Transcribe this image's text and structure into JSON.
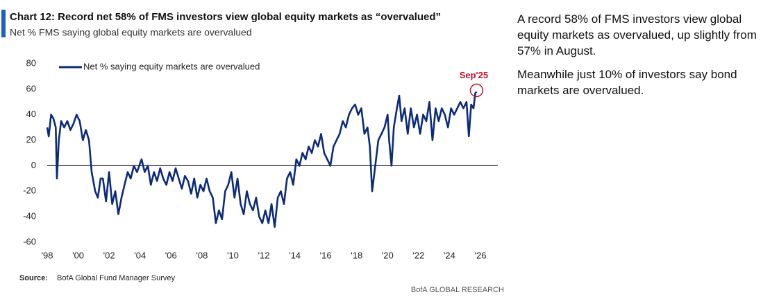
{
  "chart_data": {
    "type": "line",
    "title": "Chart 12: Record net 58% of FMS investors view global equity markets as “overvalued”",
    "subtitle": "Net % FMS saying global equity markets are overvalued",
    "annotation": "Sep'25",
    "source_label": "Source:",
    "source": "BofA Global Fund Manager Survey",
    "footer": "BofA GLOBAL RESEARCH",
    "xlim": [
      1998,
      2026
    ],
    "xticks": [
      {
        "value": 1998,
        "label": "'98"
      },
      {
        "value": 2000,
        "label": "'00"
      },
      {
        "value": 2002,
        "label": "'02"
      },
      {
        "value": 2004,
        "label": "'04"
      },
      {
        "value": 2006,
        "label": "'06"
      },
      {
        "value": 2008,
        "label": "'08"
      },
      {
        "value": 2010,
        "label": "'10"
      },
      {
        "value": 2012,
        "label": "'12"
      },
      {
        "value": 2014,
        "label": "'14"
      },
      {
        "value": 2016,
        "label": "'16"
      },
      {
        "value": 2018,
        "label": "'18"
      },
      {
        "value": 2020,
        "label": "'20"
      },
      {
        "value": 2022,
        "label": "'22"
      },
      {
        "value": 2024,
        "label": "'24"
      },
      {
        "value": 2026,
        "label": "'26"
      }
    ],
    "ylim": [
      -60,
      80
    ],
    "yticks": [
      -60,
      -40,
      -20,
      0,
      20,
      40,
      60,
      80
    ],
    "legend": "top-left",
    "x": [
      1998.0,
      1998.1,
      1998.25,
      1998.4,
      1998.55,
      1998.63,
      1998.75,
      1998.9,
      1999.1,
      1999.3,
      1999.5,
      1999.7,
      1999.9,
      2000.1,
      2000.3,
      2000.5,
      2000.7,
      2000.87,
      2001.1,
      2001.27,
      2001.45,
      2001.6,
      2001.8,
      2002.0,
      2002.2,
      2002.4,
      2002.6,
      2002.8,
      2003.0,
      2003.2,
      2003.4,
      2003.6,
      2003.8,
      2004.1,
      2004.3,
      2004.5,
      2004.7,
      2004.9,
      2005.1,
      2005.3,
      2005.5,
      2005.7,
      2005.9,
      2006.1,
      2006.3,
      2006.5,
      2006.7,
      2006.9,
      2007.1,
      2007.3,
      2007.5,
      2007.7,
      2007.9,
      2008.1,
      2008.3,
      2008.5,
      2008.7,
      2008.9,
      2009.1,
      2009.3,
      2009.5,
      2009.7,
      2009.9,
      2010.1,
      2010.3,
      2010.5,
      2010.7,
      2010.9,
      2011.1,
      2011.3,
      2011.5,
      2011.7,
      2011.9,
      2012.1,
      2012.3,
      2012.5,
      2012.7,
      2012.9,
      2013.1,
      2013.3,
      2013.5,
      2013.7,
      2013.9,
      2014.1,
      2014.3,
      2014.5,
      2014.7,
      2014.9,
      2015.1,
      2015.3,
      2015.5,
      2015.7,
      2015.9,
      2016.1,
      2016.3,
      2016.5,
      2016.7,
      2016.9,
      2017.1,
      2017.3,
      2017.5,
      2017.7,
      2017.9,
      2018.1,
      2018.3,
      2018.5,
      2018.7,
      2018.85,
      2019.0,
      2019.2,
      2019.4,
      2019.6,
      2019.8,
      2020.0,
      2020.1,
      2020.25,
      2020.4,
      2020.6,
      2020.75,
      2020.9,
      2021.1,
      2021.3,
      2021.5,
      2021.7,
      2021.9,
      2022.1,
      2022.3,
      2022.5,
      2022.7,
      2022.9,
      2023.1,
      2023.3,
      2023.5,
      2023.7,
      2023.9,
      2024.1,
      2024.3,
      2024.5,
      2024.7,
      2024.9,
      2025.1,
      2025.25,
      2025.4,
      2025.55,
      2025.67,
      2025.75
    ],
    "series": [
      {
        "name": "Net % saying equity markets are overvalued",
        "color": "#0b2a7a",
        "values": [
          30,
          23,
          40,
          37,
          30,
          -10,
          20,
          35,
          30,
          35,
          28,
          33,
          40,
          35,
          20,
          28,
          20,
          -5,
          -20,
          -25,
          -10,
          -10,
          -28,
          -5,
          -30,
          -20,
          -38,
          -25,
          -15,
          -5,
          -10,
          0,
          -5,
          5,
          -5,
          0,
          -15,
          -5,
          -12,
          -2,
          -10,
          -15,
          -5,
          -12,
          -2,
          -10,
          -18,
          -8,
          -12,
          -22,
          -10,
          -25,
          -15,
          -20,
          -10,
          -20,
          -25,
          -45,
          -35,
          -42,
          -20,
          -15,
          -5,
          -25,
          -10,
          -30,
          -38,
          -20,
          -30,
          -35,
          -25,
          -40,
          -45,
          -35,
          -45,
          -30,
          -48,
          -25,
          -20,
          -30,
          -10,
          -5,
          -15,
          5,
          0,
          10,
          5,
          15,
          10,
          20,
          15,
          25,
          10,
          5,
          0,
          15,
          20,
          25,
          35,
          30,
          40,
          45,
          48,
          40,
          45,
          25,
          30,
          15,
          -20,
          0,
          20,
          25,
          30,
          40,
          20,
          0,
          30,
          45,
          55,
          35,
          45,
          25,
          45,
          30,
          40,
          25,
          40,
          35,
          50,
          20,
          45,
          35,
          45,
          40,
          30,
          45,
          40,
          45,
          50,
          45,
          50,
          23,
          48,
          45,
          57,
          58
        ]
      }
    ]
  },
  "commentary": [
    "A record 58% of FMS investors view global equity markets as overvalued, up slightly from 57% in August.",
    "Meanwhile just 10% of investors say bond markets are overvalued."
  ]
}
